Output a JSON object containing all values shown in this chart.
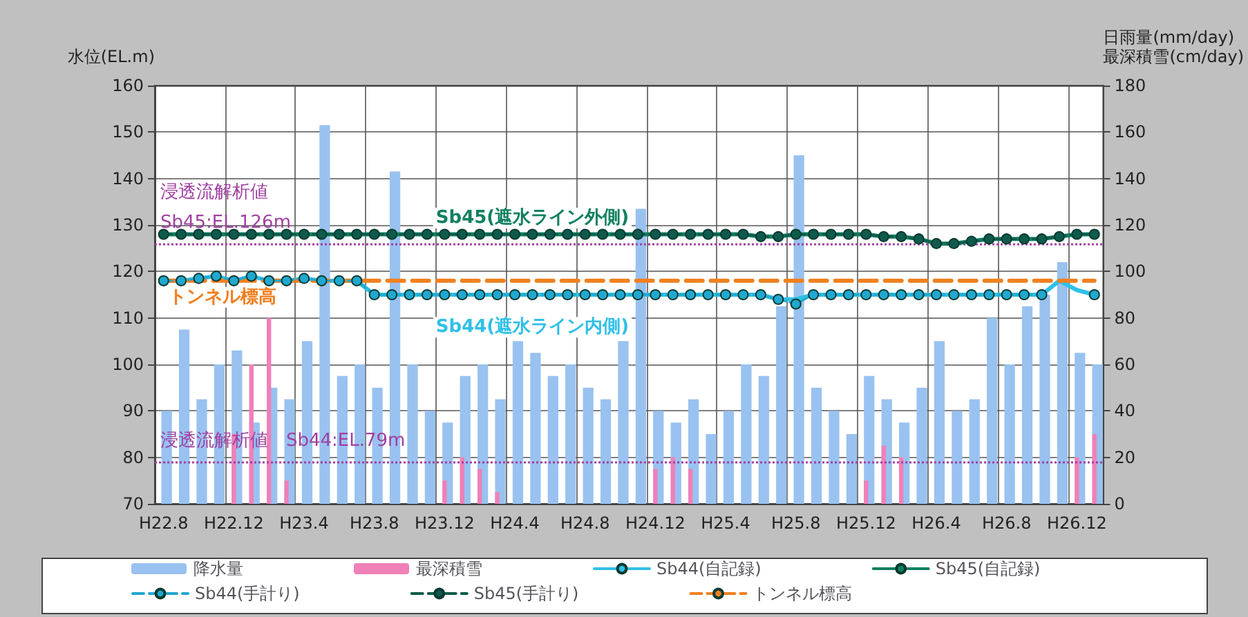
{
  "chart_data": {
    "type": "bar",
    "ylabel": "水位(EL.m)",
    "y2label": "日雨量(mm/day)\n最深積雪(cm/day)",
    "categories": [
      "H22.8",
      null,
      null,
      null,
      "H22.12",
      null,
      null,
      null,
      "H23.4",
      null,
      null,
      null,
      "H23.8",
      null,
      null,
      null,
      "H23.12",
      null,
      null,
      null,
      "H24.4",
      null,
      null,
      null,
      "H24.8",
      null,
      null,
      null,
      "H24.12",
      null,
      null,
      null,
      "H25.4",
      null,
      null,
      null,
      "H25.8",
      null,
      null,
      null,
      "H25.12",
      null,
      null,
      null,
      "H26.4",
      null,
      null,
      null,
      "H26.8",
      null,
      null,
      null,
      "H26.12",
      null
    ],
    "series": [
      {
        "name": "降水量",
        "axis": "y2",
        "color": "#99c2f0",
        "values": [
          40,
          75,
          45,
          60,
          66,
          35,
          50,
          45,
          70,
          163,
          55,
          60,
          50,
          143,
          60,
          40,
          35,
          55,
          60,
          45,
          70,
          65,
          55,
          60,
          50,
          45,
          70,
          127,
          40,
          35,
          45,
          30,
          40,
          60,
          55,
          85,
          150,
          50,
          40,
          30,
          55,
          45,
          35,
          50,
          70,
          40,
          45,
          80,
          60,
          85,
          90,
          104,
          65,
          60
        ]
      },
      {
        "name": "最深積雪",
        "axis": "y2",
        "color": "#f080b8",
        "values": [
          null,
          null,
          null,
          null,
          30,
          60,
          80,
          10,
          null,
          null,
          null,
          null,
          null,
          null,
          null,
          null,
          10,
          20,
          15,
          5,
          null,
          null,
          null,
          null,
          null,
          null,
          null,
          null,
          15,
          20,
          15,
          null,
          null,
          null,
          null,
          null,
          null,
          null,
          null,
          null,
          10,
          25,
          20,
          null,
          null,
          null,
          null,
          null,
          null,
          null,
          null,
          null,
          20,
          30
        ]
      },
      {
        "name": "Sb44(自記録)",
        "type": "line",
        "color": "#30c0e8",
        "line_style": "solid",
        "marker": "none",
        "values": [
          118,
          118,
          118.5,
          119,
          118,
          119,
          118,
          118,
          118.5,
          118,
          118,
          118,
          115,
          115,
          115,
          115,
          115,
          115,
          115,
          115,
          115,
          115,
          115,
          115,
          115,
          115,
          115,
          115,
          115,
          115,
          115,
          115,
          115,
          115,
          115,
          114,
          114,
          115,
          115,
          115,
          115,
          115,
          115,
          115,
          115,
          115,
          115,
          115,
          115,
          115,
          115,
          118,
          116,
          115
        ]
      },
      {
        "name": "Sb45(自記録)",
        "type": "line",
        "color": "#108060",
        "line_style": "solid",
        "marker": "none",
        "values": [
          128,
          128,
          128,
          128,
          128,
          128,
          128,
          128,
          128,
          128,
          128,
          128,
          128,
          128,
          128,
          128,
          128,
          128,
          128,
          128,
          128,
          128,
          128,
          128,
          128,
          128,
          128,
          128,
          128,
          128,
          128,
          128,
          128,
          128,
          127.5,
          127.5,
          128,
          128,
          128,
          128,
          128,
          127.5,
          127.5,
          127,
          126,
          126,
          126.5,
          127,
          127,
          127,
          127,
          127.5,
          128,
          128
        ]
      },
      {
        "name": "Sb44(手計り)",
        "type": "line",
        "color": "#20a8d0",
        "line_style": "dashed",
        "marker": "circle",
        "values": [
          118,
          118,
          118.5,
          119,
          118,
          119,
          118,
          118,
          118.5,
          118,
          118,
          118,
          115,
          115,
          115,
          115,
          115,
          115,
          115,
          115,
          115,
          115,
          115,
          115,
          115,
          115,
          115,
          115,
          115,
          115,
          115,
          115,
          115,
          115,
          115,
          114,
          113,
          115,
          115,
          115,
          115,
          115,
          115,
          115,
          115,
          115,
          115,
          115,
          115,
          115,
          115,
          null,
          null,
          115
        ]
      },
      {
        "name": "Sb45(手計り)",
        "type": "line",
        "color": "#0e5a4c",
        "line_style": "dashed",
        "marker": "circle",
        "values": [
          128,
          128,
          128,
          128,
          128,
          128,
          128,
          128,
          128,
          128,
          128,
          128,
          128,
          128,
          128,
          128,
          128,
          128,
          128,
          128,
          128,
          128,
          128,
          128,
          128,
          128,
          128,
          128,
          128,
          128,
          128,
          128,
          128,
          128,
          127.5,
          127.5,
          128,
          128,
          128,
          128,
          128,
          127.5,
          127.5,
          127,
          126,
          126,
          126.5,
          127,
          127,
          127,
          127,
          127.5,
          128,
          128
        ]
      },
      {
        "name": "トンネル標高",
        "type": "line",
        "color": "#f08020",
        "line_style": "dashed",
        "marker": "none",
        "values": [
          118,
          118,
          118,
          118,
          118,
          118,
          118,
          118,
          118,
          118,
          118,
          118,
          118,
          118,
          118,
          118,
          118,
          118,
          118,
          118,
          118,
          118,
          118,
          118,
          118,
          118,
          118,
          118,
          118,
          118,
          118,
          118,
          118,
          118,
          118,
          118,
          118,
          118,
          118,
          118,
          118,
          118,
          118,
          118,
          118,
          118,
          118,
          118,
          118,
          118,
          118,
          118,
          118,
          118
        ]
      }
    ],
    "ylim": [
      70,
      160
    ],
    "yticks": [
      70,
      80,
      90,
      100,
      110,
      120,
      130,
      140,
      150,
      160
    ],
    "y2lim": [
      0,
      180
    ],
    "y2ticks": [
      0,
      20,
      40,
      60,
      80,
      100,
      120,
      140,
      160,
      180
    ],
    "ref_lines": [
      {
        "axis": "y",
        "value": 126,
        "label": "浸透流解析値\nSb45:EL.126m",
        "color": "#a040a0",
        "line_style": "dotted"
      },
      {
        "axis": "y",
        "value": 79,
        "label": "浸透流解析値　Sb44:EL.79m",
        "color": "#a040a0",
        "line_style": "dotted"
      }
    ],
    "annotations": [
      "Sb45(遮水ライン外側)",
      "Sb44(遮水ライン内側)"
    ],
    "grid": true,
    "legend": "bottom"
  }
}
